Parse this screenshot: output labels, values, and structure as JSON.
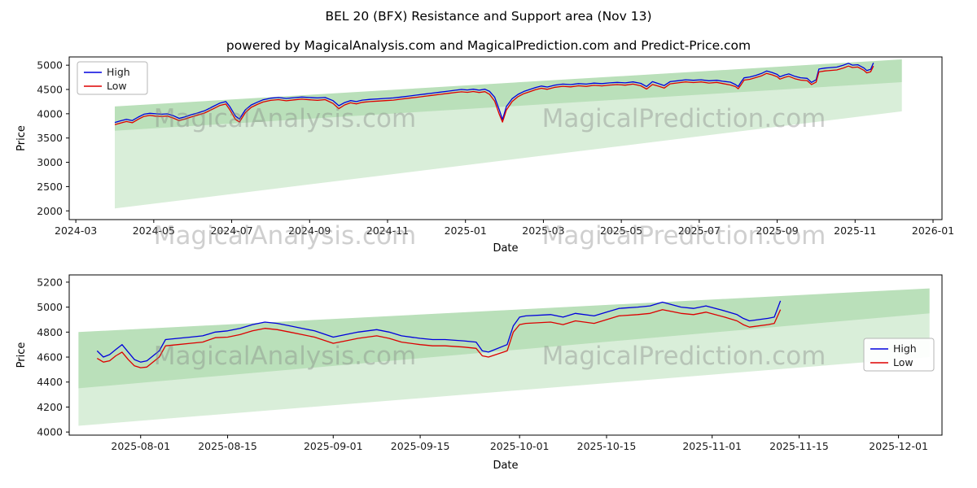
{
  "title": "BEL 20 (BFX) Resistance and Support area (Nov 13)",
  "subtitle": "powered by MagicalAnalysis.com and MagicalPrediction.com and Predict-Price.com",
  "watermarks": [
    "MagicalAnalysis.com",
    "MagicalPrediction.com"
  ],
  "colors": {
    "high": "#0000dd",
    "low": "#dd0000",
    "band": "rgba(44,160,44,0.18)"
  },
  "chart_data": [
    {
      "type": "line",
      "xlabel": "Date",
      "ylabel": "Price",
      "xlim": [
        -0.17,
        22.23
      ],
      "ylim": [
        1820,
        5170
      ],
      "x_unit": "months since 2024-03-01",
      "xticks": [
        {
          "v": 0,
          "label": "2024-03"
        },
        {
          "v": 2,
          "label": "2024-05"
        },
        {
          "v": 4,
          "label": "2024-07"
        },
        {
          "v": 6,
          "label": "2024-09"
        },
        {
          "v": 8,
          "label": "2024-11"
        },
        {
          "v": 10,
          "label": "2025-01"
        },
        {
          "v": 12,
          "label": "2025-03"
        },
        {
          "v": 14,
          "label": "2025-05"
        },
        {
          "v": 16,
          "label": "2025-07"
        },
        {
          "v": 18,
          "label": "2025-09"
        },
        {
          "v": 20,
          "label": "2025-11"
        },
        {
          "v": 22,
          "label": "2026-01"
        }
      ],
      "yticks": [
        2000,
        2500,
        3000,
        3500,
        4000,
        4500,
        5000
      ],
      "bands": [
        {
          "points": [
            [
              1,
              2050
            ],
            [
              21.2,
              4050
            ],
            [
              21.2,
              5120
            ],
            [
              1,
              4150
            ]
          ]
        },
        {
          "points": [
            [
              1,
              3650
            ],
            [
              21.2,
              4650
            ],
            [
              21.2,
              5120
            ],
            [
              1,
              4150
            ]
          ]
        }
      ],
      "series": [
        {
          "name": "High",
          "x": [
            1.0,
            1.15,
            1.3,
            1.45,
            1.6,
            1.75,
            1.9,
            2.05,
            2.2,
            2.35,
            2.5,
            2.65,
            2.8,
            2.95,
            3.1,
            3.3,
            3.5,
            3.7,
            3.85,
            3.95,
            4.1,
            4.2,
            4.35,
            4.5,
            4.65,
            4.8,
            5.0,
            5.2,
            5.4,
            5.6,
            5.8,
            6.0,
            6.2,
            6.4,
            6.6,
            6.75,
            6.9,
            7.05,
            7.2,
            7.35,
            7.55,
            7.75,
            7.95,
            8.15,
            8.35,
            8.55,
            8.75,
            8.95,
            9.15,
            9.35,
            9.55,
            9.75,
            9.9,
            10.05,
            10.2,
            10.35,
            10.5,
            10.62,
            10.75,
            10.87,
            10.95,
            11.05,
            11.2,
            11.35,
            11.5,
            11.65,
            11.8,
            11.95,
            12.1,
            12.3,
            12.5,
            12.7,
            12.9,
            13.1,
            13.3,
            13.5,
            13.7,
            13.9,
            14.1,
            14.3,
            14.5,
            14.65,
            14.8,
            14.95,
            15.1,
            15.25,
            15.45,
            15.65,
            15.85,
            16.05,
            16.25,
            16.45,
            16.6,
            16.8,
            16.93,
            17.0,
            17.08,
            17.15,
            17.3,
            17.45,
            17.6,
            17.73,
            17.87,
            18.0,
            18.07,
            18.2,
            18.3,
            18.45,
            18.6,
            18.77,
            18.88,
            19.0,
            19.07,
            19.23,
            19.37,
            19.53,
            19.7,
            19.83,
            19.93,
            20.07,
            20.23,
            20.3,
            20.4,
            20.47
          ],
          "y": [
            3820,
            3855,
            3885,
            3860,
            3930,
            3990,
            4010,
            4000,
            3990,
            3998,
            3960,
            3905,
            3935,
            3975,
            4010,
            4060,
            4140,
            4220,
            4250,
            4150,
            3950,
            3890,
            4080,
            4180,
            4235,
            4285,
            4320,
            4335,
            4315,
            4330,
            4345,
            4335,
            4325,
            4335,
            4270,
            4165,
            4230,
            4270,
            4250,
            4280,
            4295,
            4305,
            4315,
            4325,
            4345,
            4365,
            4385,
            4405,
            4425,
            4445,
            4465,
            4485,
            4500,
            4490,
            4505,
            4485,
            4505,
            4460,
            4340,
            4080,
            3880,
            4150,
            4310,
            4400,
            4460,
            4500,
            4540,
            4570,
            4550,
            4590,
            4610,
            4600,
            4620,
            4610,
            4630,
            4620,
            4635,
            4645,
            4635,
            4655,
            4625,
            4560,
            4660,
            4620,
            4580,
            4660,
            4680,
            4700,
            4690,
            4700,
            4680,
            4690,
            4670,
            4650,
            4600,
            4560,
            4660,
            4740,
            4758,
            4790,
            4830,
            4880,
            4850,
            4810,
            4762,
            4800,
            4820,
            4772,
            4742,
            4730,
            4645,
            4700,
            4920,
            4940,
            4950,
            4960,
            5000,
            5040,
            5000,
            5010,
            4940,
            4890,
            4915,
            5050
          ]
        },
        {
          "name": "Low",
          "x": [
            1.0,
            1.15,
            1.3,
            1.45,
            1.6,
            1.75,
            1.9,
            2.05,
            2.2,
            2.35,
            2.5,
            2.65,
            2.8,
            2.95,
            3.1,
            3.3,
            3.5,
            3.7,
            3.85,
            3.95,
            4.1,
            4.2,
            4.35,
            4.5,
            4.65,
            4.8,
            5.0,
            5.2,
            5.4,
            5.6,
            5.8,
            6.0,
            6.2,
            6.4,
            6.6,
            6.75,
            6.9,
            7.05,
            7.2,
            7.35,
            7.55,
            7.75,
            7.95,
            8.15,
            8.35,
            8.55,
            8.75,
            8.95,
            9.15,
            9.35,
            9.55,
            9.75,
            9.9,
            10.05,
            10.2,
            10.35,
            10.5,
            10.62,
            10.75,
            10.87,
            10.95,
            11.05,
            11.2,
            11.35,
            11.5,
            11.65,
            11.8,
            11.95,
            12.1,
            12.3,
            12.5,
            12.7,
            12.9,
            13.1,
            13.3,
            13.5,
            13.7,
            13.9,
            14.1,
            14.3,
            14.5,
            14.65,
            14.8,
            14.95,
            15.1,
            15.25,
            15.45,
            15.65,
            15.85,
            16.05,
            16.25,
            16.45,
            16.6,
            16.8,
            16.93,
            17.0,
            17.08,
            17.15,
            17.3,
            17.45,
            17.6,
            17.73,
            17.87,
            18.0,
            18.07,
            18.2,
            18.3,
            18.45,
            18.6,
            18.77,
            18.88,
            19.0,
            19.07,
            19.23,
            19.37,
            19.53,
            19.7,
            19.83,
            19.93,
            20.07,
            20.23,
            20.3,
            20.4,
            20.47
          ],
          "y": [
            3775,
            3810,
            3840,
            3815,
            3885,
            3945,
            3965,
            3950,
            3945,
            3952,
            3912,
            3858,
            3890,
            3930,
            3965,
            4015,
            4092,
            4172,
            4200,
            4085,
            3882,
            3830,
            4022,
            4132,
            4190,
            4240,
            4275,
            4290,
            4268,
            4285,
            4300,
            4288,
            4278,
            4290,
            4212,
            4105,
            4182,
            4225,
            4203,
            4235,
            4250,
            4260,
            4270,
            4280,
            4300,
            4320,
            4340,
            4360,
            4380,
            4400,
            4420,
            4440,
            4452,
            4442,
            4458,
            4438,
            4455,
            4398,
            4258,
            3988,
            3828,
            4078,
            4252,
            4352,
            4415,
            4455,
            4495,
            4525,
            4503,
            4545,
            4565,
            4553,
            4575,
            4563,
            4585,
            4573,
            4590,
            4600,
            4588,
            4610,
            4575,
            4508,
            4602,
            4568,
            4528,
            4615,
            4635,
            4655,
            4643,
            4655,
            4633,
            4645,
            4623,
            4592,
            4558,
            4515,
            4605,
            4692,
            4710,
            4745,
            4782,
            4832,
            4802,
            4762,
            4712,
            4752,
            4772,
            4722,
            4692,
            4682,
            4602,
            4652,
            4862,
            4882,
            4892,
            4902,
            4942,
            4982,
            4952,
            4962,
            4892,
            4842,
            4865,
            4982
          ]
        }
      ]
    },
    {
      "type": "line",
      "xlabel": "Date",
      "ylabel": "Price",
      "xlim": [
        -1.5,
        139
      ],
      "ylim": [
        3975,
        5258
      ],
      "x_unit": "days since 2025-07-22",
      "xticks": [
        {
          "v": 10,
          "label": "2025-08-01"
        },
        {
          "v": 24,
          "label": "2025-08-15"
        },
        {
          "v": 41,
          "label": "2025-09-01"
        },
        {
          "v": 55,
          "label": "2025-09-15"
        },
        {
          "v": 71,
          "label": "2025-10-01"
        },
        {
          "v": 85,
          "label": "2025-10-15"
        },
        {
          "v": 102,
          "label": "2025-11-01"
        },
        {
          "v": 116,
          "label": "2025-11-15"
        },
        {
          "v": 132,
          "label": "2025-12-01"
        }
      ],
      "yticks": [
        4000,
        4200,
        4400,
        4600,
        4800,
        5000,
        5200
      ],
      "bands": [
        {
          "points": [
            [
              0,
              4050
            ],
            [
              137,
              4600
            ],
            [
              137,
              5150
            ],
            [
              0,
              4800
            ]
          ]
        },
        {
          "points": [
            [
              0,
              4350
            ],
            [
              137,
              4950
            ],
            [
              137,
              5150
            ],
            [
              0,
              4800
            ]
          ]
        }
      ],
      "series": [
        {
          "name": "High",
          "x": [
            3,
            4,
            5,
            6,
            7,
            8,
            9,
            10,
            11,
            13,
            14,
            16,
            18,
            20,
            22,
            24,
            26,
            28,
            30,
            32,
            34,
            36,
            38,
            41,
            43,
            45,
            48,
            50,
            52,
            55,
            57,
            59,
            62,
            64,
            65,
            66,
            69,
            70,
            71,
            72,
            76,
            78,
            80,
            83,
            85,
            87,
            90,
            92,
            94,
            97,
            99,
            101,
            104,
            106,
            107,
            108,
            111,
            112,
            113
          ],
          "y": [
            4650,
            4600,
            4620,
            4660,
            4700,
            4640,
            4580,
            4560,
            4570,
            4650,
            4740,
            4750,
            4760,
            4770,
            4800,
            4810,
            4830,
            4860,
            4880,
            4870,
            4850,
            4830,
            4810,
            4760,
            4780,
            4800,
            4820,
            4800,
            4770,
            4750,
            4740,
            4740,
            4730,
            4720,
            4650,
            4640,
            4700,
            4850,
            4920,
            4930,
            4940,
            4920,
            4950,
            4930,
            4960,
            4990,
            5000,
            5010,
            5040,
            5000,
            4990,
            5010,
            4970,
            4940,
            4910,
            4890,
            4910,
            4920,
            5050
          ]
        },
        {
          "name": "Low",
          "x": [
            3,
            4,
            5,
            6,
            7,
            8,
            9,
            10,
            11,
            13,
            14,
            16,
            18,
            20,
            22,
            24,
            26,
            28,
            30,
            32,
            34,
            36,
            38,
            41,
            43,
            45,
            48,
            50,
            52,
            55,
            57,
            59,
            62,
            64,
            65,
            66,
            69,
            70,
            71,
            72,
            76,
            78,
            80,
            83,
            85,
            87,
            90,
            92,
            94,
            97,
            99,
            101,
            104,
            106,
            107,
            108,
            111,
            112,
            113
          ],
          "y": [
            4590,
            4560,
            4570,
            4610,
            4640,
            4580,
            4530,
            4515,
            4520,
            4600,
            4690,
            4700,
            4710,
            4720,
            4755,
            4760,
            4780,
            4810,
            4830,
            4820,
            4800,
            4780,
            4760,
            4710,
            4730,
            4750,
            4770,
            4750,
            4720,
            4700,
            4690,
            4690,
            4680,
            4670,
            4610,
            4600,
            4650,
            4800,
            4860,
            4870,
            4880,
            4860,
            4890,
            4870,
            4900,
            4930,
            4940,
            4950,
            4980,
            4950,
            4940,
            4960,
            4920,
            4890,
            4860,
            4840,
            4860,
            4870,
            4980
          ]
        }
      ]
    }
  ]
}
